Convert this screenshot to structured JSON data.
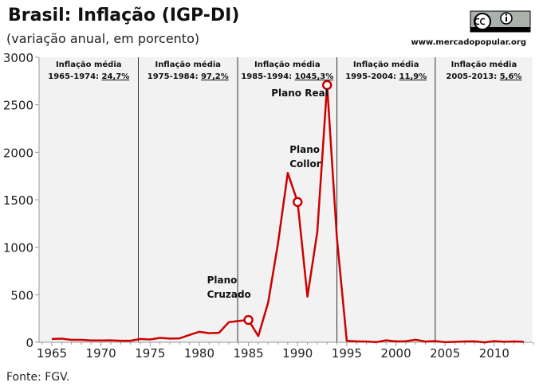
{
  "chart_data": {
    "type": "line",
    "title": "Brasil: Inflação (IGP-DI)",
    "subtitle": "(variação anual, em porcento)",
    "source": "Fonte: FGV.",
    "website": "www.mercadopopular.org",
    "license_logo": "cc-by",
    "xlim": [
      1964,
      2014
    ],
    "ylim": [
      0,
      3000
    ],
    "x_ticks": [
      1965,
      1970,
      1975,
      1980,
      1985,
      1990,
      1995,
      2000,
      2005,
      2010
    ],
    "y_ticks": [
      0,
      500,
      1000,
      1500,
      2000,
      2500,
      3000
    ],
    "grid": false,
    "series_color": "#cc0000",
    "x": [
      1965,
      1966,
      1967,
      1968,
      1969,
      1970,
      1971,
      1972,
      1973,
      1974,
      1975,
      1976,
      1977,
      1978,
      1979,
      1980,
      1981,
      1982,
      1983,
      1984,
      1985,
      1986,
      1987,
      1988,
      1989,
      1990,
      1991,
      1992,
      1993,
      1994,
      1995,
      1996,
      1997,
      1998,
      1999,
      2000,
      2001,
      2002,
      2003,
      2004,
      2005,
      2006,
      2007,
      2008,
      2009,
      2010,
      2011,
      2012,
      2013
    ],
    "values": [
      34.2,
      38.2,
      25.0,
      25.5,
      19.3,
      19.3,
      19.5,
      15.7,
      15.6,
      34.5,
      29.4,
      46.3,
      38.8,
      40.8,
      77.2,
      110.2,
      95.2,
      99.7,
      211.0,
      223.8,
      235.1,
      65.0,
      415.8,
      1037.6,
      1782.9,
      1476.7,
      480.2,
      1157.8,
      2708.2,
      1093.9,
      14.8,
      9.3,
      7.5,
      1.7,
      20.0,
      9.8,
      10.4,
      26.4,
      7.7,
      12.1,
      1.2,
      3.8,
      7.9,
      9.1,
      -1.4,
      11.3,
      5.0,
      8.1,
      5.5
    ],
    "periods": [
      {
        "label": "Inflação média",
        "range": "1965-1974:",
        "value": "24,7%",
        "start": 1965,
        "end": 1973.8
      },
      {
        "label": "Inflação média",
        "range": "1975-1984:",
        "value": "97,2%",
        "start": 1973.8,
        "end": 1983.9
      },
      {
        "label": "Inflação média",
        "range": "1985-1994:",
        "value": "1045,3%",
        "start": 1983.9,
        "end": 1994
      },
      {
        "label": "Inflação média",
        "range": "1995-2004:",
        "value": "11,9%",
        "start": 1994,
        "end": 2004
      },
      {
        "label": "Inflação média",
        "range": "2005-2013:",
        "value": "5,6%",
        "start": 2004,
        "end": 2014
      }
    ],
    "annotations": [
      {
        "lines": [
          "Plano",
          "Cruzado"
        ],
        "x": 1985,
        "y": 235.1
      },
      {
        "lines": [
          "Plano",
          "Collor"
        ],
        "x": 1990,
        "y": 1476.7
      },
      {
        "lines": [
          "Plano Real"
        ],
        "x": 1993,
        "y": 2708.2
      }
    ]
  }
}
